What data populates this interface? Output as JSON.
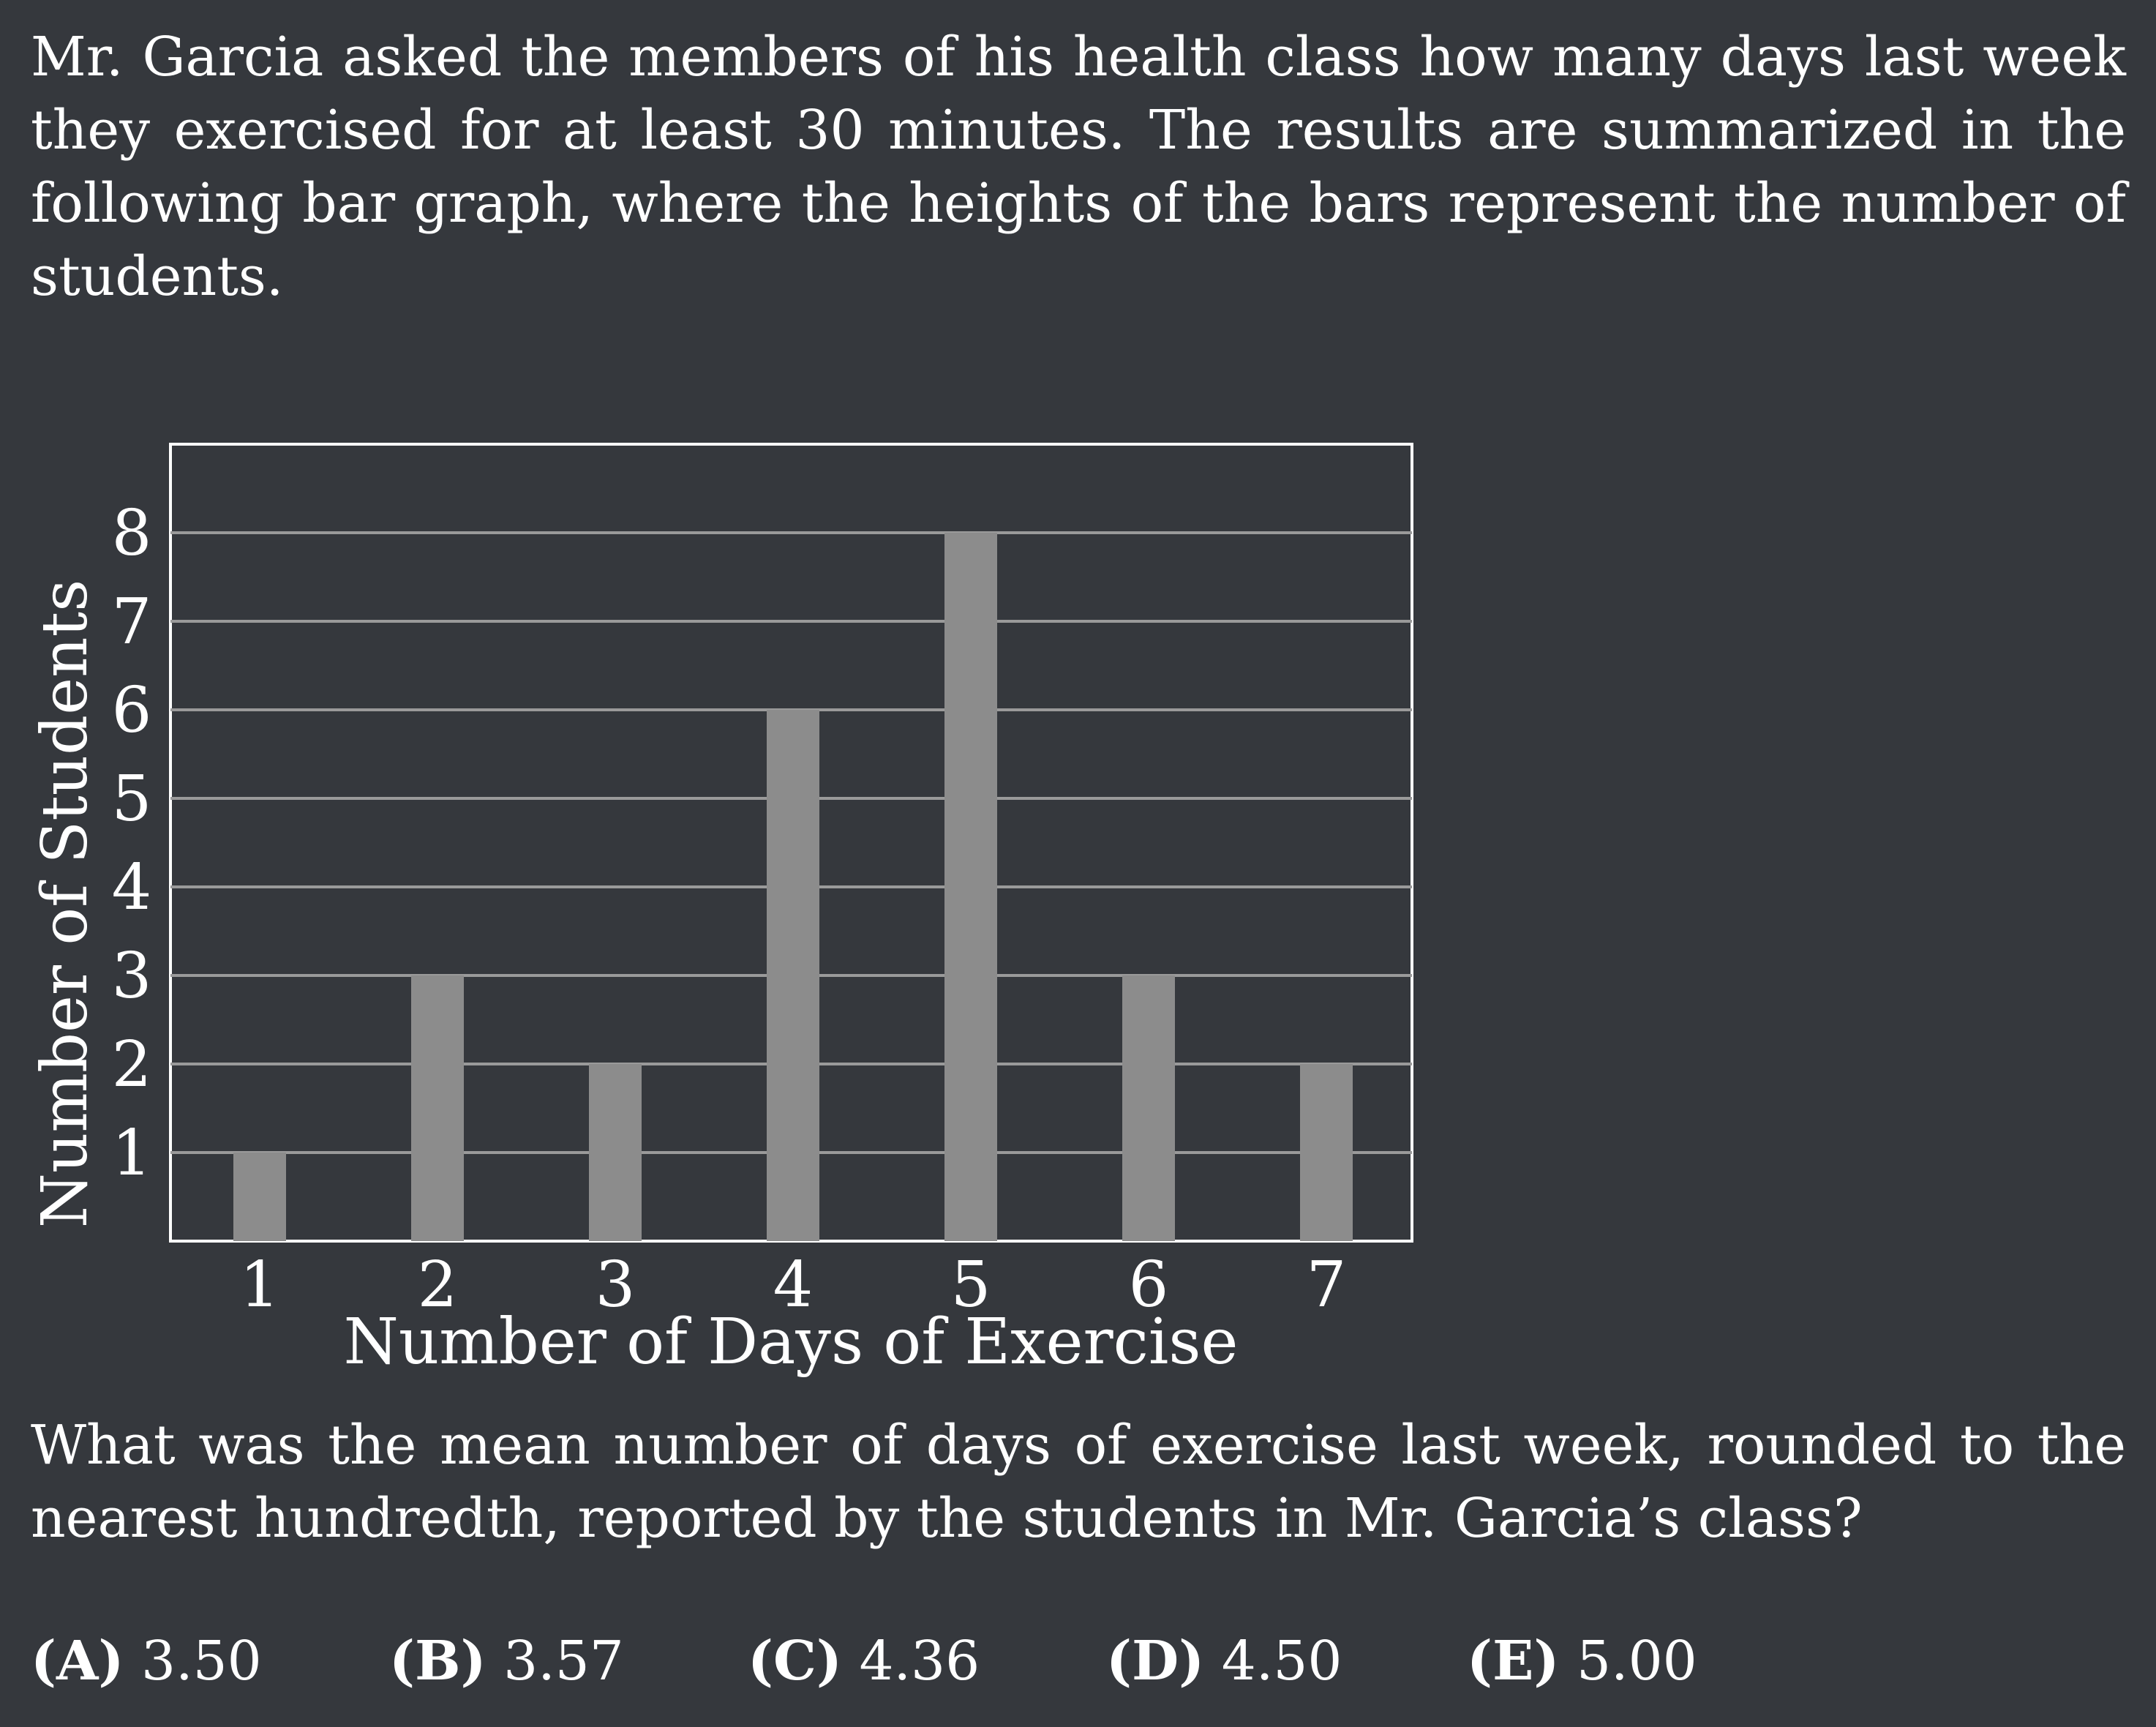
{
  "question": {
    "intro": "Mr.  Garcia asked the members of his health class how many days last week they exercised for at least 30 minutes.  The results are summarized in the following bar graph, where the heights of the bars represent the number of students.",
    "prompt": "What was the mean number of days of exercise last week, rounded to the nearest hundredth, reported by the students in Mr. Garcia’s class?"
  },
  "choices": [
    {
      "letter": "(A)",
      "value": "3.50"
    },
    {
      "letter": "(B)",
      "value": "3.57"
    },
    {
      "letter": "(C)",
      "value": "4.36"
    },
    {
      "letter": "(D)",
      "value": "4.50"
    },
    {
      "letter": "(E)",
      "value": "5.00"
    }
  ],
  "colors": {
    "background": "#35383d",
    "bar": "#8c8c8c",
    "gridline": "#9a9a9a",
    "frame": "#ffffff",
    "text": "#ffffff"
  },
  "chart_data": {
    "type": "bar",
    "categories": [
      "1",
      "2",
      "3",
      "4",
      "5",
      "6",
      "7"
    ],
    "values": [
      1,
      3,
      2,
      6,
      8,
      3,
      2
    ],
    "xlabel": "Number of Days of Exercise",
    "ylabel": "Number of Students",
    "yticks": [
      "1",
      "2",
      "3",
      "4",
      "5",
      "6",
      "7",
      "8"
    ],
    "ylim": [
      0,
      9
    ],
    "grid": true
  }
}
